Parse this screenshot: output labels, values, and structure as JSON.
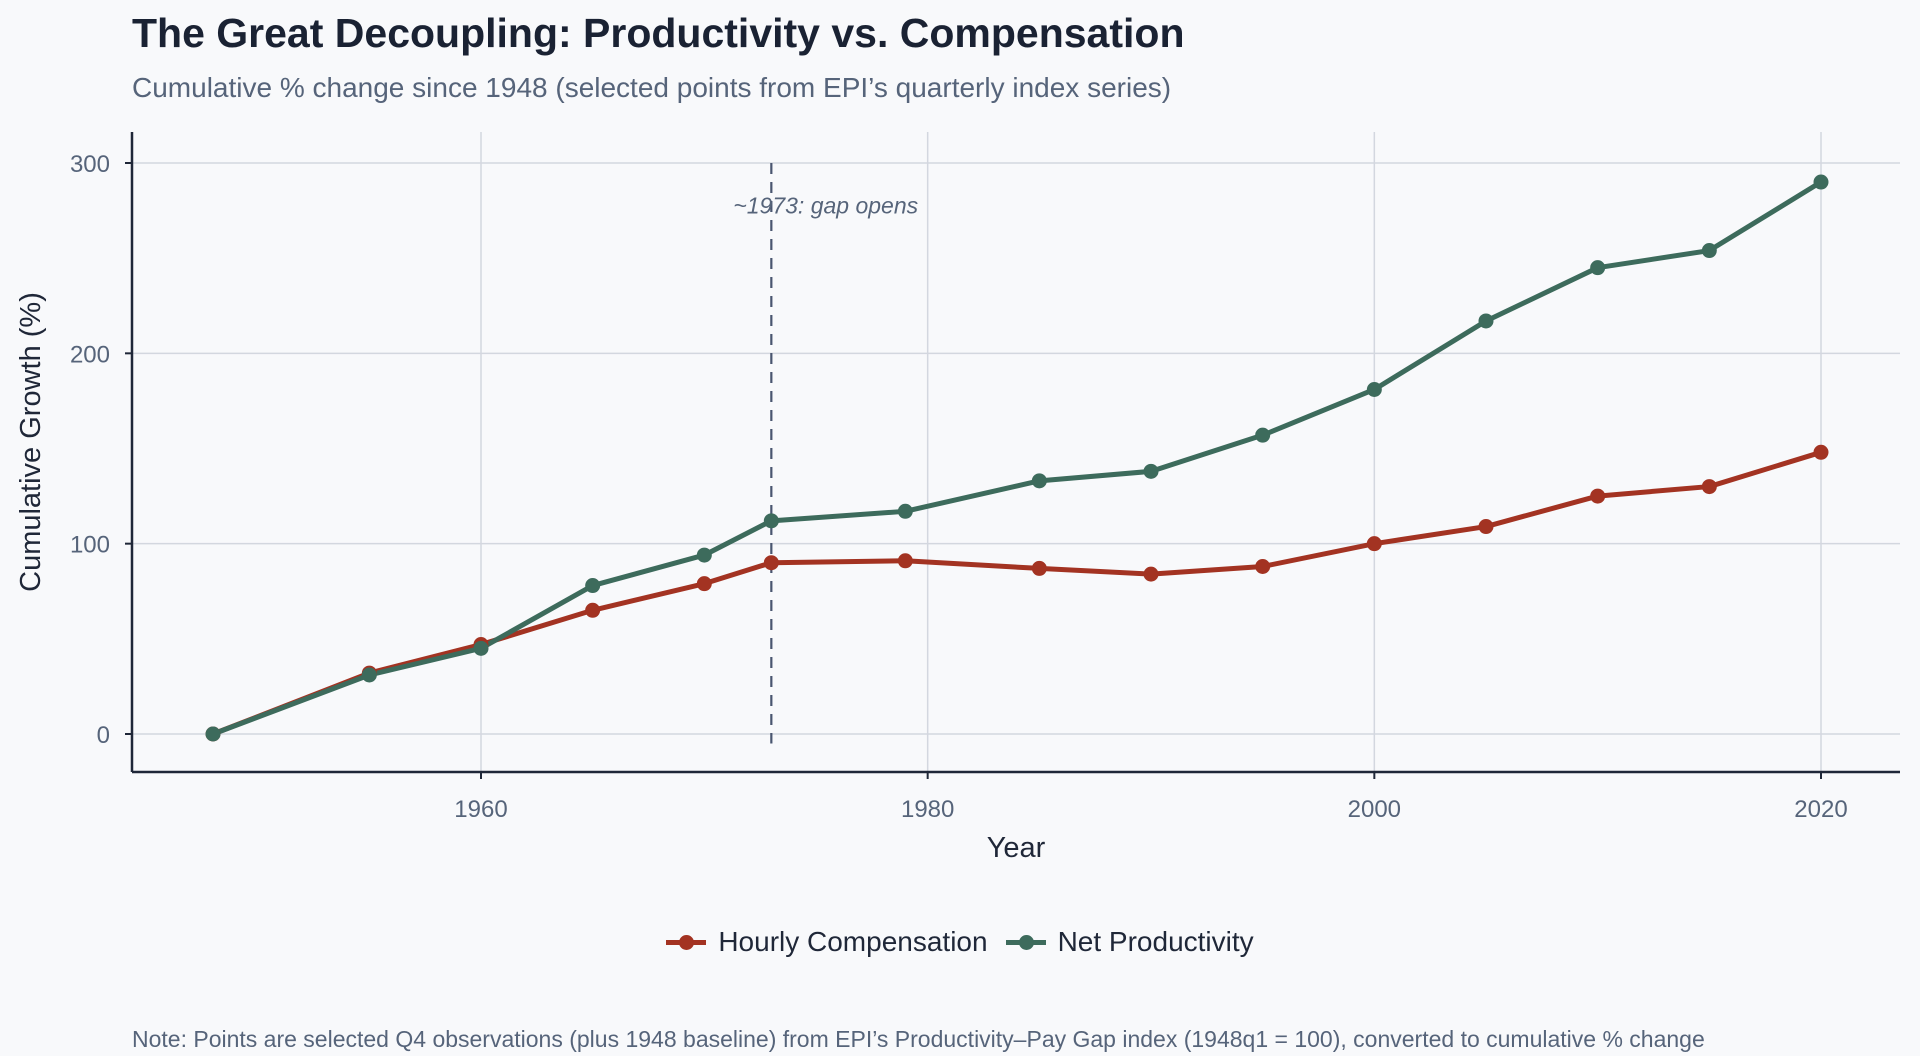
{
  "title": "The Great Decoupling: Productivity vs. Compensation",
  "subtitle": "Cumulative % change since 1948 (selected points from EPI’s quarterly index series)",
  "note": "Note: Points are selected Q4 observations (plus 1948 baseline) from EPI’s Productivity–Pay Gap index (1948q1 = 100), converted to cumulative % change",
  "colors": {
    "compensation": "#a33322",
    "productivity": "#3d6b5c",
    "grid": "#d3d7df",
    "axis": "#1f2738",
    "annotation": "#56647a",
    "background": "#f8f9fb"
  },
  "chart_data": {
    "type": "line",
    "title": "The Great Decoupling: Productivity vs. Compensation",
    "subtitle": "Cumulative % change since 1948 (selected points from EPI’s quarterly index series)",
    "xlabel": "Year",
    "ylabel": "Cumulative Growth (%)",
    "xlim": [
      1945,
      2023
    ],
    "ylim": [
      -20,
      315
    ],
    "xticks": [
      1960,
      1980,
      2000,
      2020
    ],
    "yticks": [
      0,
      100,
      200,
      300
    ],
    "grid": true,
    "legend_position": "bottom-center",
    "x": [
      1948,
      1955,
      1960,
      1965,
      1970,
      1973,
      1979,
      1985,
      1990,
      1995,
      2000,
      2005,
      2010,
      2015,
      2020
    ],
    "series": [
      {
        "name": "Hourly Compensation",
        "color": "#a33322",
        "values": [
          0,
          32,
          47,
          65,
          79,
          90,
          91,
          87,
          84,
          88,
          100,
          109,
          125,
          130,
          148
        ]
      },
      {
        "name": "Net Productivity",
        "color": "#3d6b5c",
        "values": [
          0,
          31,
          45,
          78,
          94,
          112,
          117,
          133,
          138,
          157,
          181,
          217,
          245,
          254,
          290
        ]
      }
    ],
    "annotations": [
      {
        "type": "vline",
        "x": 1973,
        "style": "dashed",
        "text": "~1973: gap opens"
      }
    ]
  }
}
